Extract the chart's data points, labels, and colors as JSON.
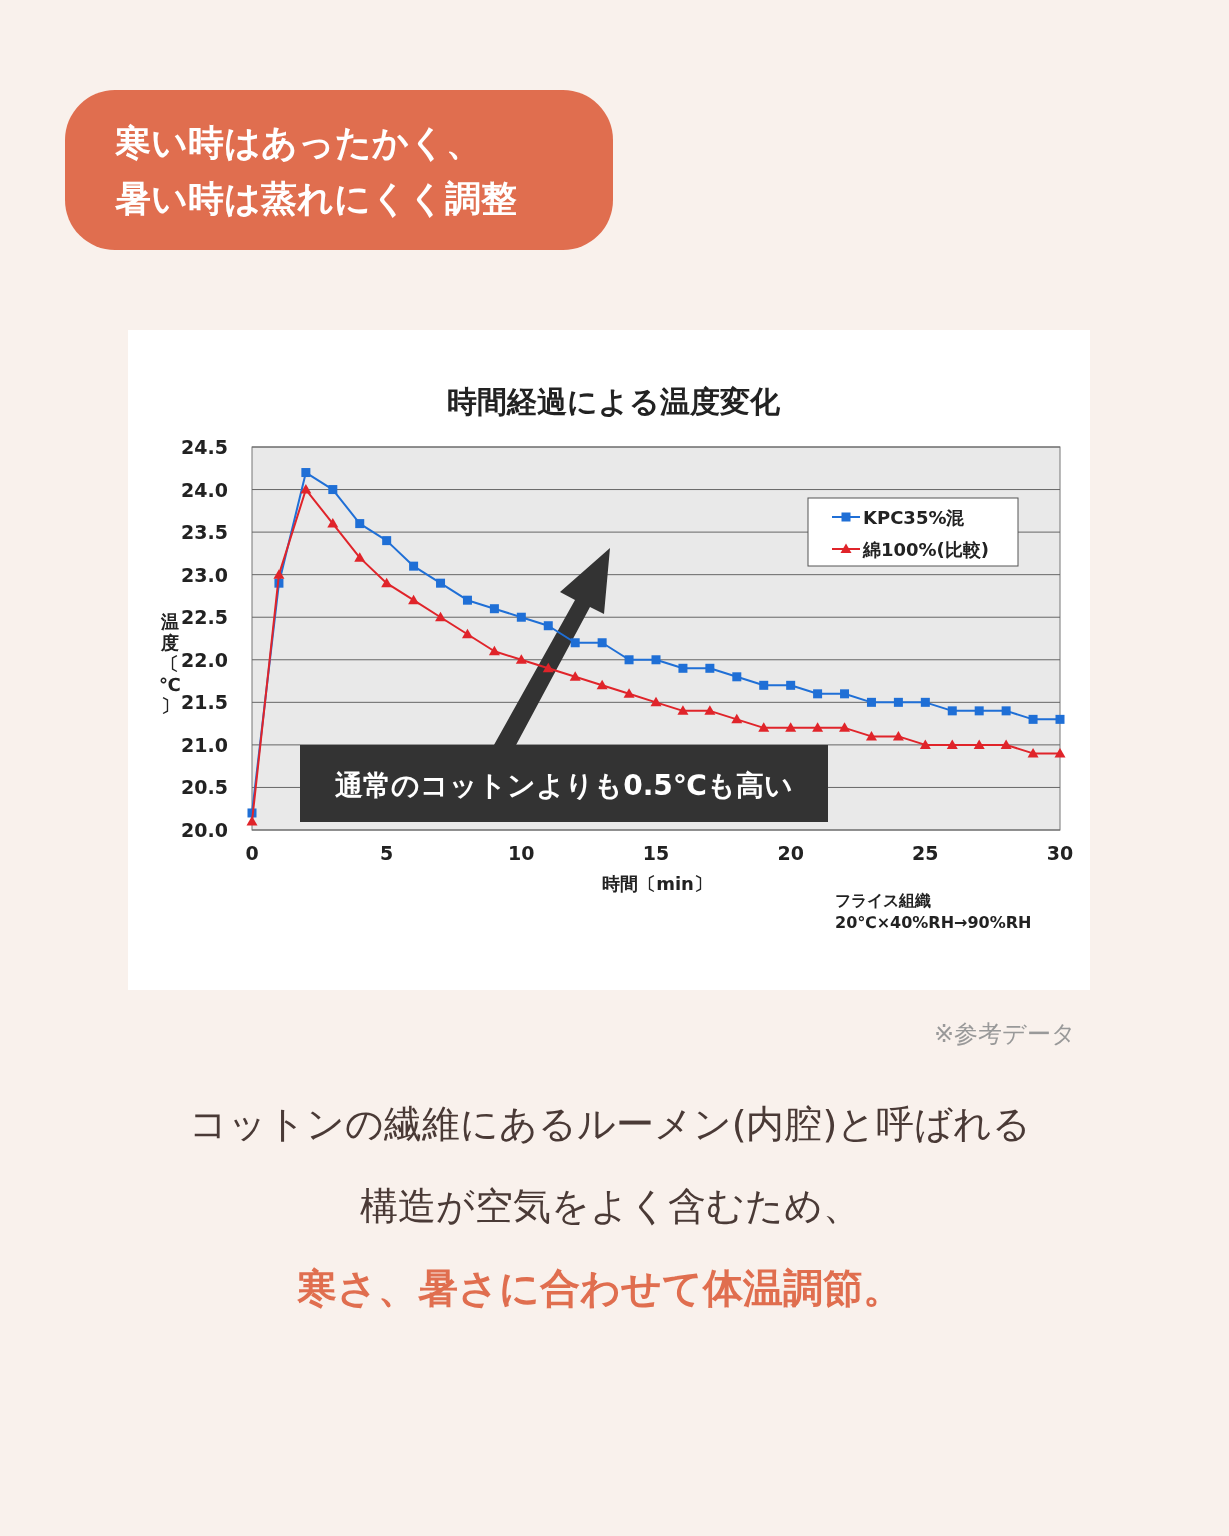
{
  "chart_data": {
    "type": "line",
    "title": "時間経過による温度変化",
    "xlabel": "時間〔min〕",
    "ylabel": "温度〔℃〕",
    "x": [
      0,
      1,
      2,
      3,
      4,
      5,
      6,
      7,
      8,
      9,
      10,
      11,
      12,
      13,
      14,
      15,
      16,
      17,
      18,
      19,
      20,
      21,
      22,
      23,
      24,
      25,
      26,
      27,
      28,
      29,
      30
    ],
    "series": [
      {
        "name": "KPC35%混",
        "color": "#1f6fd6",
        "marker": "square",
        "values": [
          20.2,
          22.9,
          24.2,
          24.0,
          23.6,
          23.4,
          23.1,
          22.9,
          22.7,
          22.6,
          22.5,
          22.4,
          22.2,
          22.2,
          22.0,
          22.0,
          21.9,
          21.9,
          21.8,
          21.7,
          21.7,
          21.6,
          21.6,
          21.5,
          21.5,
          21.5,
          21.4,
          21.4,
          21.4,
          21.3,
          21.3
        ]
      },
      {
        "name": "綿100%(比較)",
        "color": "#e0242a",
        "marker": "triangle",
        "values": [
          20.1,
          23.0,
          24.0,
          23.6,
          23.2,
          22.9,
          22.7,
          22.5,
          22.3,
          22.1,
          22.0,
          21.9,
          21.8,
          21.7,
          21.6,
          21.5,
          21.4,
          21.4,
          21.3,
          21.2,
          21.2,
          21.2,
          21.2,
          21.1,
          21.1,
          21.0,
          21.0,
          21.0,
          21.0,
          20.9,
          20.9
        ]
      }
    ],
    "xlim": [
      0,
      30
    ],
    "xticks": [
      0,
      5,
      10,
      15,
      20,
      25,
      30
    ],
    "ylim": [
      20,
      24.5
    ],
    "yticks": [
      {
        "value": 20,
        "label": "20.0"
      },
      {
        "value": 20.5,
        "label": "20.5"
      },
      {
        "value": 21,
        "label": "21.0"
      },
      {
        "value": 21.5,
        "label": "21.5"
      },
      {
        "value": 22,
        "label": "22.0"
      },
      {
        "value": 22.5,
        "label": "22.5"
      },
      {
        "value": 23,
        "label": "23.0"
      },
      {
        "value": 23.5,
        "label": "23.5"
      },
      {
        "value": 24,
        "label": "24.0"
      },
      {
        "value": 24.5,
        "label": "24.5"
      }
    ],
    "grid": "y",
    "legend": "top right",
    "annotations": [
      "寒い時はあったかく、",
      "暑い時は蒸れにくく調整",
      "通常のコットンよりも0.5℃も高い",
      "フライス組織",
      "20℃×40%RH→90%RH",
      "※参考データ",
      "コットンの繊維にあるルーメン(内腔)と呼ばれる",
      "構造が空気をよく含むため、",
      "寒さ、暑さに合わせて体温調節。"
    ]
  }
}
